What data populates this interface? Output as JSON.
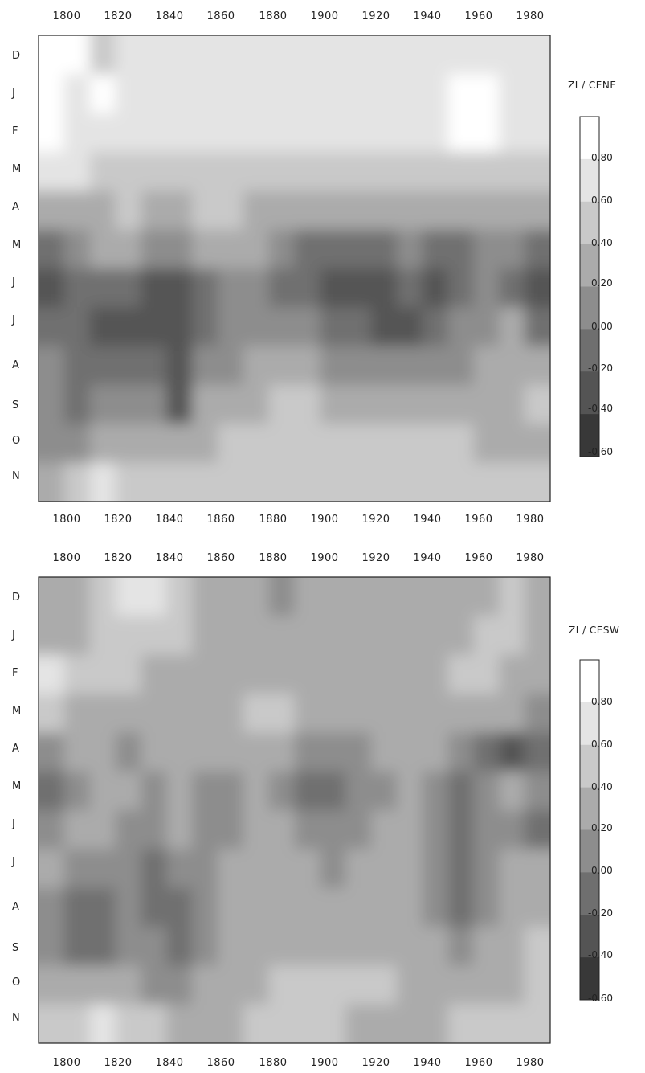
{
  "chart_data": [
    {
      "type": "heatmap",
      "title": "ZI / CENE",
      "x_ticks": [
        1800,
        1820,
        1840,
        1860,
        1880,
        1900,
        1920,
        1940,
        1960,
        1980
      ],
      "xlim": [
        1790,
        1985
      ],
      "month_labels": [
        "D",
        "J",
        "F",
        "M",
        "A",
        "M",
        "J",
        "J",
        "A",
        "S",
        "O",
        "N"
      ],
      "legend_levels": [
        "0.80",
        "0.60",
        "0.40",
        "0.20",
        "0.00",
        "-0.20",
        "-0.40",
        "-0.60"
      ],
      "legend_colors": [
        "#ffffff",
        "#e4e4e4",
        "#c9c9c9",
        "#ababab",
        "#8d8d8d",
        "#6f6f6f",
        "#545454",
        "#383838"
      ],
      "rows_month_year_anomaly_class": [
        [
          0,
          0,
          2,
          1,
          1,
          1,
          1,
          1,
          1,
          1,
          1,
          1,
          1,
          1,
          1,
          1,
          1,
          1,
          1,
          1
        ],
        [
          0,
          1,
          0,
          1,
          1,
          1,
          1,
          1,
          1,
          1,
          1,
          1,
          1,
          1,
          1,
          1,
          0,
          0,
          1,
          1
        ],
        [
          0,
          1,
          1,
          1,
          1,
          1,
          1,
          1,
          1,
          1,
          1,
          1,
          1,
          1,
          1,
          1,
          0,
          0,
          1,
          1
        ],
        [
          1,
          1,
          2,
          2,
          2,
          2,
          2,
          2,
          2,
          2,
          2,
          2,
          2,
          2,
          2,
          2,
          2,
          2,
          2,
          2
        ],
        [
          3,
          3,
          3,
          2,
          3,
          3,
          2,
          2,
          3,
          3,
          3,
          3,
          3,
          3,
          3,
          3,
          3,
          3,
          3,
          3
        ],
        [
          5,
          4,
          3,
          3,
          4,
          4,
          3,
          3,
          3,
          4,
          5,
          5,
          5,
          5,
          4,
          5,
          5,
          4,
          4,
          5
        ],
        [
          6,
          5,
          5,
          5,
          6,
          6,
          5,
          4,
          4,
          5,
          5,
          6,
          6,
          6,
          5,
          6,
          5,
          4,
          5,
          6
        ],
        [
          5,
          5,
          6,
          6,
          6,
          6,
          5,
          4,
          4,
          4,
          4,
          5,
          5,
          6,
          6,
          5,
          4,
          4,
          3,
          5
        ],
        [
          4,
          5,
          5,
          5,
          5,
          6,
          4,
          4,
          3,
          3,
          3,
          4,
          4,
          4,
          4,
          4,
          4,
          3,
          3,
          3
        ],
        [
          4,
          5,
          4,
          4,
          4,
          6,
          3,
          3,
          3,
          2,
          2,
          3,
          3,
          3,
          3,
          3,
          3,
          3,
          3,
          2
        ],
        [
          4,
          4,
          3,
          3,
          3,
          3,
          3,
          2,
          2,
          2,
          2,
          2,
          2,
          2,
          2,
          2,
          2,
          3,
          3,
          3
        ],
        [
          3,
          2,
          1,
          2,
          2,
          2,
          2,
          2,
          2,
          2,
          2,
          2,
          2,
          2,
          2,
          2,
          2,
          2,
          2,
          2
        ]
      ]
    },
    {
      "type": "heatmap",
      "title": "ZI / CESW",
      "x_ticks": [
        1800,
        1820,
        1840,
        1860,
        1880,
        1900,
        1920,
        1940,
        1960,
        1980
      ],
      "xlim": [
        1790,
        1985
      ],
      "month_labels": [
        "D",
        "J",
        "F",
        "M",
        "A",
        "M",
        "J",
        "J",
        "A",
        "S",
        "O",
        "N"
      ],
      "legend_levels": [
        "0.80",
        "0.60",
        "0.40",
        "0.20",
        "0.00",
        "-0.20",
        "-0.40",
        "-0.60"
      ],
      "legend_colors": [
        "#ffffff",
        "#e4e4e4",
        "#c9c9c9",
        "#ababab",
        "#8d8d8d",
        "#6f6f6f",
        "#545454",
        "#383838"
      ],
      "rows_month_year_anomaly_class": [
        [
          3,
          3,
          2,
          1,
          1,
          2,
          3,
          3,
          3,
          4,
          3,
          3,
          3,
          3,
          3,
          3,
          3,
          3,
          2,
          3
        ],
        [
          3,
          3,
          2,
          2,
          2,
          2,
          3,
          3,
          3,
          3,
          3,
          3,
          3,
          3,
          3,
          3,
          3,
          2,
          2,
          3
        ],
        [
          1,
          2,
          2,
          2,
          3,
          3,
          3,
          3,
          3,
          3,
          3,
          3,
          3,
          3,
          3,
          3,
          2,
          2,
          3,
          3
        ],
        [
          2,
          3,
          3,
          3,
          3,
          3,
          3,
          3,
          2,
          2,
          3,
          3,
          3,
          3,
          3,
          3,
          3,
          3,
          3,
          4
        ],
        [
          4,
          3,
          3,
          4,
          3,
          3,
          3,
          3,
          3,
          3,
          4,
          4,
          4,
          3,
          3,
          3,
          4,
          5,
          6,
          5
        ],
        [
          5,
          4,
          3,
          3,
          4,
          3,
          4,
          4,
          3,
          4,
          5,
          5,
          4,
          4,
          3,
          4,
          5,
          4,
          3,
          4
        ],
        [
          4,
          3,
          3,
          4,
          4,
          3,
          4,
          4,
          3,
          3,
          4,
          4,
          4,
          3,
          3,
          4,
          5,
          4,
          4,
          5
        ],
        [
          3,
          4,
          4,
          4,
          5,
          4,
          4,
          3,
          3,
          3,
          3,
          4,
          3,
          3,
          3,
          4,
          5,
          4,
          3,
          3
        ],
        [
          4,
          5,
          5,
          4,
          5,
          5,
          4,
          3,
          3,
          3,
          3,
          3,
          3,
          3,
          3,
          4,
          5,
          4,
          3,
          3
        ],
        [
          4,
          5,
          5,
          4,
          4,
          5,
          4,
          3,
          3,
          3,
          3,
          3,
          3,
          3,
          3,
          3,
          4,
          3,
          3,
          2
        ],
        [
          3,
          3,
          3,
          3,
          4,
          4,
          3,
          3,
          3,
          2,
          2,
          2,
          2,
          2,
          3,
          3,
          3,
          3,
          3,
          2
        ],
        [
          2,
          2,
          1,
          2,
          2,
          3,
          3,
          3,
          2,
          2,
          2,
          2,
          3,
          3,
          3,
          3,
          2,
          2,
          2,
          2
        ]
      ]
    }
  ]
}
